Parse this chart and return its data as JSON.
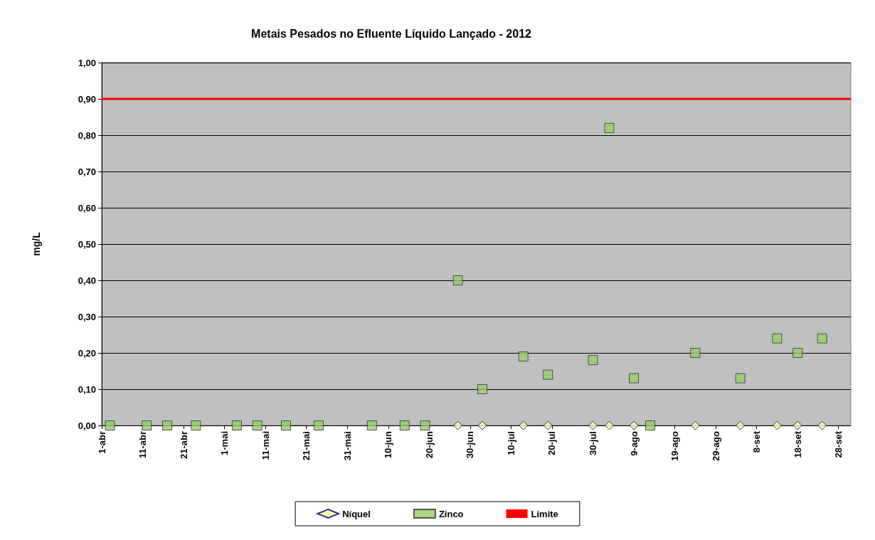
{
  "chart_data": {
    "type": "scatter",
    "title": "Metais Pesados no Efluente Líquido Lançado - 2012",
    "ylabel": "mg/L",
    "xlim": [
      "2012-04-01",
      "2012-10-01"
    ],
    "xticks": [
      {
        "value": "2012-04-01",
        "label": "1-abr"
      },
      {
        "value": "2012-04-11",
        "label": "11-abr"
      },
      {
        "value": "2012-04-21",
        "label": "21-abr"
      },
      {
        "value": "2012-05-01",
        "label": "1-mai"
      },
      {
        "value": "2012-05-11",
        "label": "11-mai"
      },
      {
        "value": "2012-05-21",
        "label": "21-mai"
      },
      {
        "value": "2012-05-31",
        "label": "31-mai"
      },
      {
        "value": "2012-06-10",
        "label": "10-jun"
      },
      {
        "value": "2012-06-20",
        "label": "20-jun"
      },
      {
        "value": "2012-06-30",
        "label": "30-jun"
      },
      {
        "value": "2012-07-10",
        "label": "10-jul"
      },
      {
        "value": "2012-07-20",
        "label": "20-jul"
      },
      {
        "value": "2012-07-30",
        "label": "30-jul"
      },
      {
        "value": "2012-08-09",
        "label": "9-ago"
      },
      {
        "value": "2012-08-19",
        "label": "19-ago"
      },
      {
        "value": "2012-08-29",
        "label": "29-ago"
      },
      {
        "value": "2012-09-08",
        "label": "8-set"
      },
      {
        "value": "2012-09-18",
        "label": "18-set"
      },
      {
        "value": "2012-09-28",
        "label": "28-set"
      }
    ],
    "ylim": [
      0,
      1
    ],
    "yticks": [
      {
        "value": 0,
        "label": "0,00"
      },
      {
        "value": 0.1,
        "label": "0,10"
      },
      {
        "value": 0.2,
        "label": "0,20"
      },
      {
        "value": 0.3,
        "label": "0,30"
      },
      {
        "value": 0.4,
        "label": "0,40"
      },
      {
        "value": 0.5,
        "label": "0,50"
      },
      {
        "value": 0.6,
        "label": "0,60"
      },
      {
        "value": 0.7,
        "label": "0,70"
      },
      {
        "value": 0.8,
        "label": "0,80"
      },
      {
        "value": 0.9,
        "label": "0,90"
      },
      {
        "value": 1,
        "label": "1,00"
      }
    ],
    "grid": "y",
    "legend": "bottom",
    "series": [
      {
        "name": "Níquel",
        "marker": "diamond",
        "color": "#ffff99",
        "x": [
          "2012-06-27",
          "2012-07-03",
          "2012-07-13",
          "2012-07-19",
          "2012-07-30",
          "2012-08-03",
          "2012-08-09",
          "2012-08-24",
          "2012-09-04",
          "2012-09-13",
          "2012-09-18",
          "2012-09-24"
        ],
        "values": [
          0,
          0,
          0,
          0,
          0,
          0,
          0,
          0,
          0,
          0,
          0,
          0
        ]
      },
      {
        "name": "Zinco",
        "marker": "square",
        "color": "#99cc66",
        "x": [
          "2012-04-03",
          "2012-04-12",
          "2012-04-17",
          "2012-04-24",
          "2012-05-04",
          "2012-05-09",
          "2012-05-16",
          "2012-05-24",
          "2012-06-06",
          "2012-06-14",
          "2012-06-19",
          "2012-06-27",
          "2012-07-03",
          "2012-07-13",
          "2012-07-19",
          "2012-07-30",
          "2012-08-03",
          "2012-08-09",
          "2012-08-13",
          "2012-08-24",
          "2012-09-04",
          "2012-09-13",
          "2012-09-18",
          "2012-09-24"
        ],
        "values": [
          0,
          0,
          0,
          0,
          0,
          0,
          0,
          0,
          0,
          0,
          0,
          0.4,
          0.1,
          0.19,
          0.14,
          0.18,
          0.82,
          0.13,
          0,
          0.2,
          0.13,
          0.24,
          0.2,
          0.24
        ]
      },
      {
        "name": "Limite",
        "type": "line",
        "marker": "none",
        "color": "#ff0000",
        "x": [
          "2012-04-01",
          "2012-10-01"
        ],
        "values": [
          0.9,
          0.9
        ]
      }
    ]
  }
}
